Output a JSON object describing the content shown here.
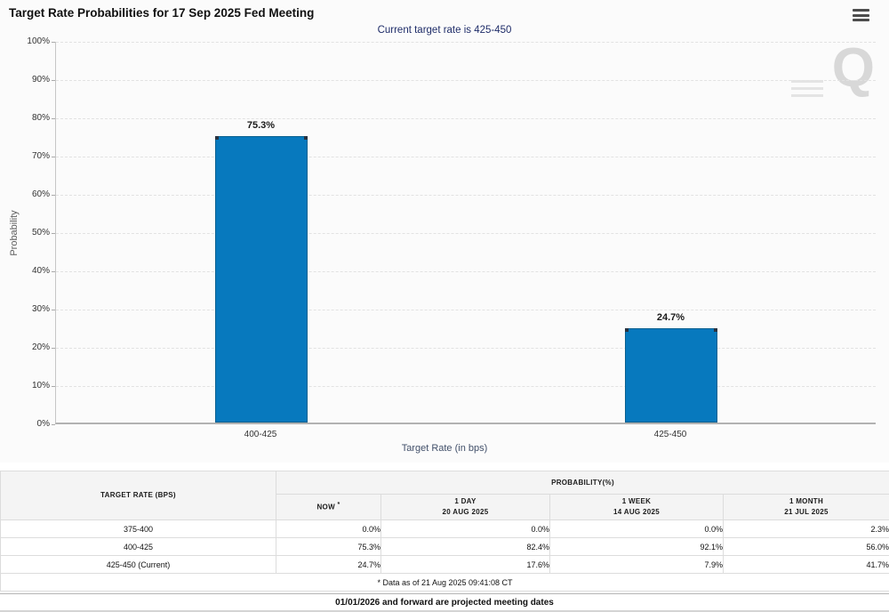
{
  "header": {
    "title": "Target Rate Probabilities for 17 Sep 2025 Fed Meeting"
  },
  "chart": {
    "subtitle": "Current target rate is 425-450",
    "y_axis_title": "Probability",
    "x_axis_title": "Target Rate (in bps)",
    "y_ticks": [
      "100%",
      "90%",
      "80%",
      "70%",
      "60%",
      "50%",
      "40%",
      "30%",
      "20%",
      "10%",
      "0%"
    ],
    "watermark_letter": "Q"
  },
  "chart_data": {
    "type": "bar",
    "title": "Target Rate Probabilities for 17 Sep 2025 Fed Meeting",
    "subtitle": "Current target rate is 425-450",
    "categories": [
      "400-425",
      "425-450"
    ],
    "values": [
      75.3,
      24.7
    ],
    "value_labels": [
      "75.3%",
      "24.7%"
    ],
    "xlabel": "Target Rate (in bps)",
    "ylabel": "Probability",
    "ylim": [
      0,
      100
    ],
    "y_tick_step": 10,
    "grid": true,
    "legend": false,
    "bar_color": "#0779be"
  },
  "table": {
    "target_rate_header": "TARGET RATE (BPS)",
    "probability_header": "PROBABILITY(%)",
    "now_header": "NOW",
    "now_asterisk": "*",
    "col_headers": [
      {
        "line1": "1 DAY",
        "line2": "20 AUG 2025"
      },
      {
        "line1": "1 WEEK",
        "line2": "14 AUG 2025"
      },
      {
        "line1": "1 MONTH",
        "line2": "21 JUL 2025"
      }
    ],
    "rows": [
      {
        "label": "375-400",
        "values": [
          "0.0%",
          "0.0%",
          "0.0%",
          "2.3%"
        ]
      },
      {
        "label": "400-425",
        "values": [
          "75.3%",
          "82.4%",
          "92.1%",
          "56.0%"
        ]
      },
      {
        "label": "425-450 (Current)",
        "values": [
          "24.7%",
          "17.6%",
          "7.9%",
          "41.7%"
        ]
      }
    ],
    "footnote": "* Data as of 21 Aug 2025 09:41:08 CT"
  },
  "footer": {
    "note": "01/01/2026 and forward are projected meeting dates"
  },
  "colors": {
    "bar": "#0779be",
    "subtitle_text": "#1f2d69",
    "now_column_bg": "#f6f9e0"
  }
}
